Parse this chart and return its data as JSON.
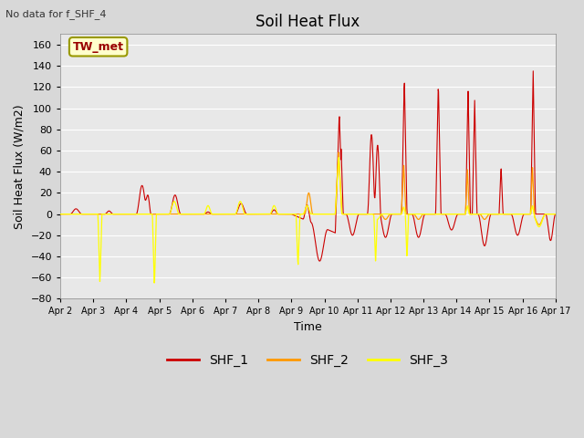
{
  "title": "Soil Heat Flux",
  "top_left_text": "No data for f_SHF_4",
  "ylabel": "Soil Heat Flux (W/m2)",
  "xlabel": "Time",
  "ylim": [
    -80,
    170
  ],
  "yticks": [
    -80,
    -60,
    -40,
    -20,
    0,
    20,
    40,
    60,
    80,
    100,
    120,
    140,
    160
  ],
  "fig_bg": "#d8d8d8",
  "plot_bg": "#e8e8e8",
  "grid_color": "#ffffff",
  "legend_box_label": "TW_met",
  "legend_box_facecolor": "#ffffcc",
  "legend_box_edgecolor": "#999900",
  "series_colors": {
    "SHF_1": "#cc0000",
    "SHF_2": "#ff9900",
    "SHF_3": "#ffff00"
  },
  "x_tick_labels": [
    "Apr 2",
    "Apr 3",
    "Apr 4",
    "Apr 5",
    "Apr 6",
    "Apr 7",
    "Apr 8",
    "Apr 9",
    "Apr 10",
    "Apr 11",
    "Apr 12",
    "Apr 13",
    "Apr 14",
    "Apr 15",
    "Apr 16",
    "Apr 17"
  ]
}
